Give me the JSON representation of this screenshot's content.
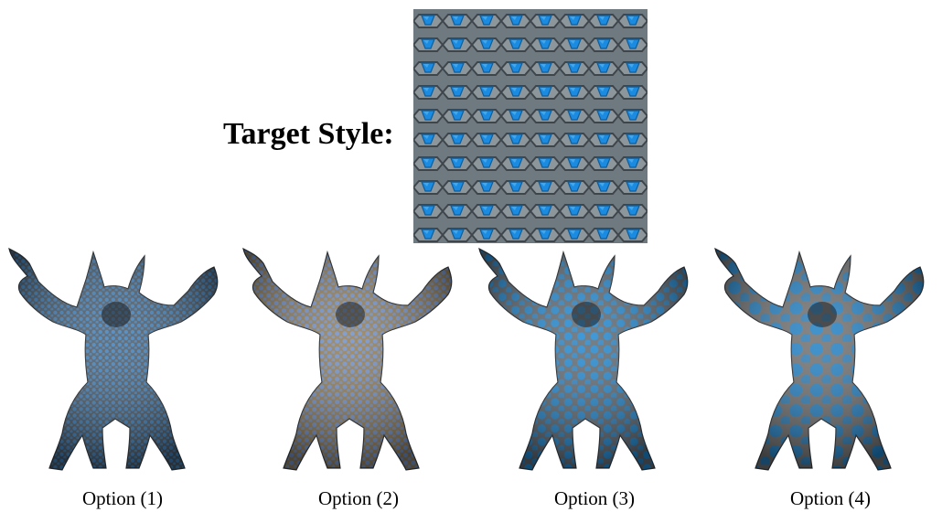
{
  "target": {
    "label": "Target Style:"
  },
  "options": [
    {
      "caption": "Option (1)",
      "base": "#4a5662",
      "spot": "#3b7fbd",
      "spot_size": 2.2,
      "tone": "fine-blue-spots"
    },
    {
      "caption": "Option (2)",
      "base": "#8f7a55",
      "spot": "#6f8fc8",
      "spot_size": 2.6,
      "tone": "tan-with-blue-marks"
    },
    {
      "caption": "Option (3)",
      "base": "#5d6770",
      "spot": "#1e86d0",
      "spot_size": 4.5,
      "tone": "blue-hex-pattern"
    },
    {
      "caption": "Option (4)",
      "base": "#6e6e6e",
      "spot": "#1f7fc4",
      "spot_size": 7,
      "tone": "large-blue-patches"
    }
  ],
  "colors": {
    "pattern_blue": "#1a8be0",
    "pattern_gray": "#7d868c",
    "pattern_dark": "#3e464c"
  }
}
